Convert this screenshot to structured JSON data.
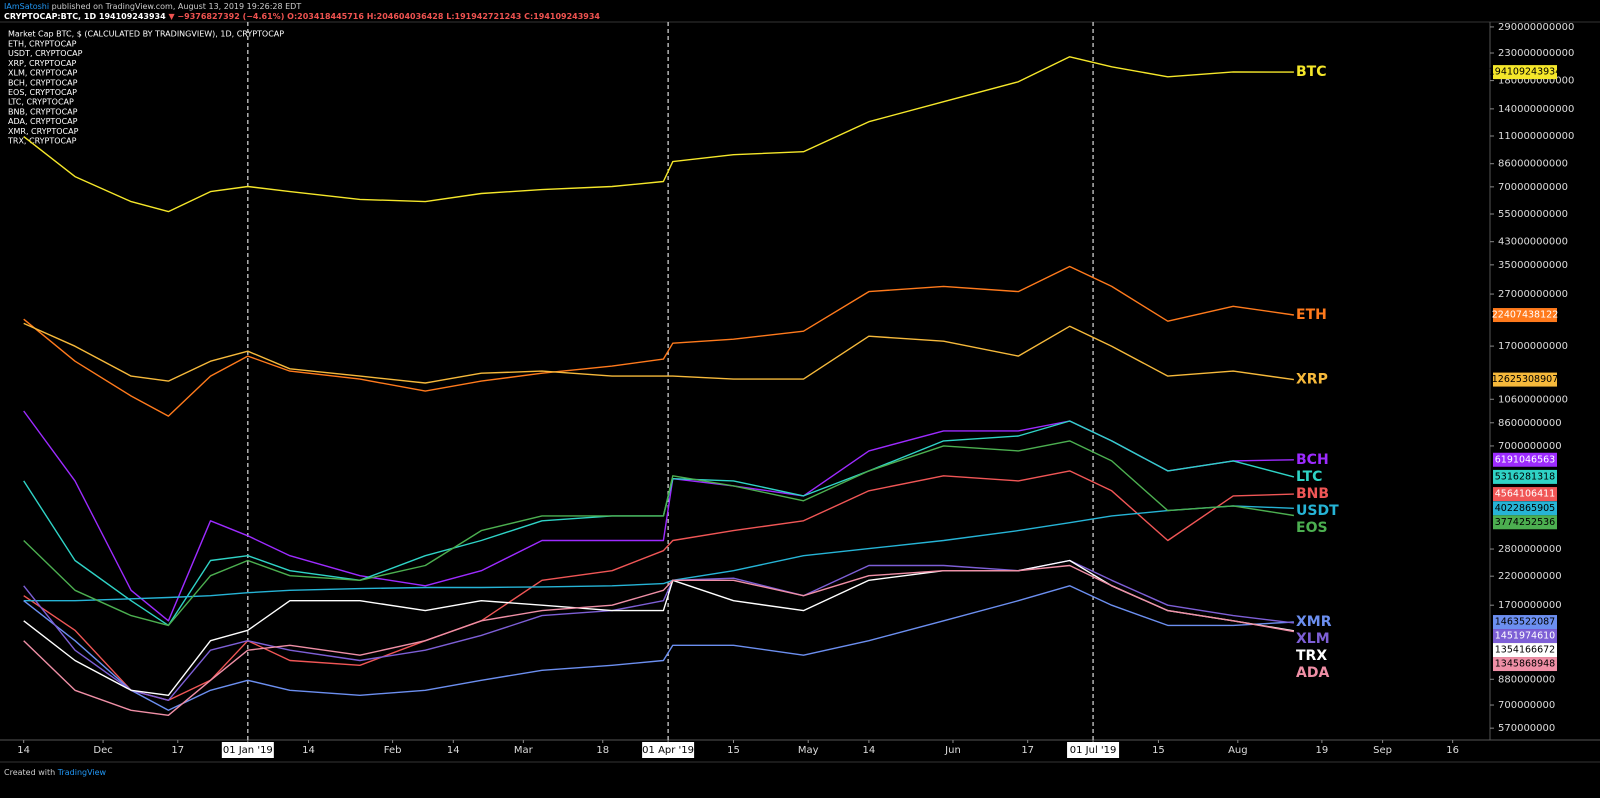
{
  "header": {
    "author": "IAmSatoshi",
    "published": "published on TradingView.com, August 13, 2019 19:26:28 EDT",
    "symbol": "CRYPTOCAP:BTC, 1D",
    "last": "194109243934",
    "change": "▼ −9376827392 (−4.61%)",
    "ohlc": [
      "O:203418445716",
      "H:204604036428",
      "L:191942721243",
      "C:194109243934"
    ]
  },
  "footer": {
    "created": "Created with",
    "brand": "TradingView"
  },
  "chart_data": {
    "type": "line",
    "title": "Market Cap BTC, $ (CALCULATED BY TRADINGVIEW), 1D, CRYPTOCAP",
    "legend_entries": [
      "ETH, CRYPTOCAP",
      "USDT, CRYPTOCAP",
      "XRP, CRYPTOCAP",
      "XLM, CRYPTOCAP",
      "BCH, CRYPTOCAP",
      "EOS, CRYPTOCAP",
      "LTC, CRYPTOCAP",
      "BNB, CRYPTOCAP",
      "ADA, CRYPTOCAP",
      "XMR, CRYPTOCAP",
      "TRX, CRYPTOCAP"
    ],
    "log_scale": true,
    "x": [
      "2018-11-14",
      "2018-11-25",
      "2018-12-07",
      "2018-12-15",
      "2018-12-24",
      "2019-01-01",
      "2019-01-10",
      "2019-01-25",
      "2019-02-08",
      "2019-02-20",
      "2019-03-05",
      "2019-03-20",
      "2019-03-31",
      "2019-04-02",
      "2019-04-15",
      "2019-04-30",
      "2019-05-14",
      "2019-05-30",
      "2019-06-15",
      "2019-06-26",
      "2019-07-05",
      "2019-07-17",
      "2019-07-31",
      "2019-08-13"
    ],
    "xlim": [
      "2018-11-10",
      "2019-09-24"
    ],
    "xticks": [
      {
        "value": "2018-11-14",
        "label": "14"
      },
      {
        "value": "2018-12-01",
        "label": "Dec"
      },
      {
        "value": "2018-12-17",
        "label": "17"
      },
      {
        "value": "2019-01-01",
        "label": "01 Jan '19"
      },
      {
        "value": "2019-01-14",
        "label": "14"
      },
      {
        "value": "2019-02-01",
        "label": "Feb"
      },
      {
        "value": "2019-02-14",
        "label": "14"
      },
      {
        "value": "2019-03-01",
        "label": "Mar"
      },
      {
        "value": "2019-03-18",
        "label": "18"
      },
      {
        "value": "2019-04-01",
        "label": "01 Apr '19"
      },
      {
        "value": "2019-04-15",
        "label": "15"
      },
      {
        "value": "2019-05-01",
        "label": "May"
      },
      {
        "value": "2019-05-14",
        "label": "14"
      },
      {
        "value": "2019-06-01",
        "label": "Jun"
      },
      {
        "value": "2019-06-17",
        "label": "17"
      },
      {
        "value": "2019-07-01",
        "label": "01 Jul '19"
      },
      {
        "value": "2019-07-15",
        "label": "15"
      },
      {
        "value": "2019-08-01",
        "label": "Aug"
      },
      {
        "value": "2019-08-19",
        "label": "19"
      },
      {
        "value": "2019-09-01",
        "label": "Sep"
      },
      {
        "value": "2019-09-16",
        "label": "16"
      }
    ],
    "vlines": [
      "2019-01-01",
      "2019-04-01",
      "2019-07-01"
    ],
    "ylim": [
      513000000,
      303000000000
    ],
    "yticks": [
      290000000000,
      230000000000,
      180000000000,
      140000000000,
      110000000000,
      86000000000,
      70000000000,
      55000000000,
      43000000000,
      35000000000,
      27000000000,
      17000000000,
      10600000000,
      8600000000,
      7000000000,
      2800000000,
      2200000000,
      1700000000,
      880000000,
      700000000,
      570000000
    ],
    "series": [
      {
        "name": "BTC",
        "color": "#f5e72a",
        "label_text": "#000000",
        "values": [
          109400000000,
          76700000000,
          61400000000,
          56200000000,
          67100000000,
          70200000000,
          67100000000,
          62600000000,
          61400000000,
          66000000000,
          68300000000,
          70200000000,
          73400000000,
          87600000000,
          93200000000,
          95700000000,
          124900000000,
          149200000000,
          178100000000,
          222300000000,
          203400000000,
          186100000000,
          194500000000,
          194109243934
        ]
      },
      {
        "name": "ETH",
        "color": "#ff7a1c",
        "label_text": "#ffffff",
        "values": [
          21600000000,
          14870000000,
          10910000000,
          9130000000,
          13020000000,
          15550000000,
          13610000000,
          12680000000,
          11400000000,
          12460000000,
          13360000000,
          14230000000,
          15140000000,
          17450000000,
          18080000000,
          19410000000,
          27600000000,
          28900000000,
          27600000000,
          34500000000,
          28900000000,
          21210000000,
          24220000000,
          22407438122
        ]
      },
      {
        "name": "XRP",
        "color": "#f6b93b",
        "label_text": "#000000",
        "values": [
          20800000000,
          16990000000,
          13020000000,
          12460000000,
          14870000000,
          16250000000,
          13900000000,
          13020000000,
          12250000000,
          13360000000,
          13610000000,
          13020000000,
          13020000000,
          13020000000,
          12680000000,
          12680000000,
          18560000000,
          17760000000,
          15550000000,
          20280000000,
          16990000000,
          13020000000,
          13610000000,
          12625308907
        ]
      },
      {
        "name": "BCH",
        "color": "#9d2bff",
        "label_text": "#ffffff",
        "values": [
          9550000000,
          5130000000,
          1940000000,
          1480000000,
          3600000000,
          3150000000,
          2640000000,
          2210000000,
          2020000000,
          2310000000,
          3020000000,
          3020000000,
          3020000000,
          5230000000,
          4910000000,
          4490000000,
          6700000000,
          8000000000,
          8000000000,
          8740000000,
          7320000000,
          5610000000,
          6130000000,
          6191046563
        ]
      },
      {
        "name": "LTC",
        "color": "#2fd3c6",
        "label_text": "#000000",
        "values": [
          5130000000,
          2530000000,
          1770000000,
          1420000000,
          2530000000,
          2640000000,
          2310000000,
          2120000000,
          2640000000,
          3020000000,
          3600000000,
          3760000000,
          3760000000,
          5230000000,
          5130000000,
          4490000000,
          5610000000,
          7320000000,
          7650000000,
          8740000000,
          7320000000,
          5610000000,
          6130000000,
          5316281318
        ]
      },
      {
        "name": "BNB",
        "color": "#f05656",
        "label_text": "#ffffff",
        "values": [
          1850000000,
          1360000000,
          798000000,
          730000000,
          872000000,
          1240000000,
          1040000000,
          996000000,
          1240000000,
          1480000000,
          2120000000,
          2310000000,
          2760000000,
          3020000000,
          3300000000,
          3600000000,
          4700000000,
          5370000000,
          5130000000,
          5610000000,
          4700000000,
          3020000000,
          4490000000,
          4564106411
        ]
      },
      {
        "name": "USDT",
        "color": "#26b4d6",
        "label_text": "#000000",
        "values": [
          1770000000,
          1770000000,
          1800000000,
          1820000000,
          1850000000,
          1900000000,
          1940000000,
          1970000000,
          1990000000,
          1990000000,
          2000000000,
          2020000000,
          2060000000,
          2120000000,
          2310000000,
          2640000000,
          2810000000,
          3020000000,
          3300000000,
          3540000000,
          3760000000,
          3940000000,
          4110000000,
          4022865905
        ]
      },
      {
        "name": "EOS",
        "color": "#4caf50",
        "label_text": "#000000",
        "values": [
          3020000000,
          1940000000,
          1550000000,
          1420000000,
          2210000000,
          2530000000,
          2210000000,
          2120000000,
          2420000000,
          3300000000,
          3760000000,
          3760000000,
          3760000000,
          5370000000,
          4910000000,
          4300000000,
          5610000000,
          7000000000,
          6700000000,
          7320000000,
          6130000000,
          3940000000,
          4110000000,
          3774252536
        ]
      },
      {
        "name": "XMR",
        "color": "#6c8ff0",
        "label_text": "#000000",
        "values": [
          1770000000,
          1240000000,
          798000000,
          668000000,
          798000000,
          872000000,
          798000000,
          763000000,
          798000000,
          872000000,
          953000000,
          996000000,
          1040000000,
          1190000000,
          1190000000,
          1090000000,
          1240000000,
          1480000000,
          1770000000,
          2020000000,
          1700000000,
          1420000000,
          1420000000,
          1463522087
        ]
      },
      {
        "name": "XLM",
        "color": "#7d5fd6",
        "label_text": "#ffffff",
        "values": [
          2020000000,
          1140000000,
          798000000,
          730000000,
          1140000000,
          1240000000,
          1140000000,
          1040000000,
          1140000000,
          1300000000,
          1550000000,
          1620000000,
          1770000000,
          2120000000,
          2160000000,
          1850000000,
          2420000000,
          2420000000,
          2310000000,
          2530000000,
          2120000000,
          1700000000,
          1550000000,
          1451974610
        ]
      },
      {
        "name": "TRX",
        "color": "#ffffff",
        "label_text": "#000000",
        "values": [
          1480000000,
          1040000000,
          798000000,
          763000000,
          1240000000,
          1360000000,
          1770000000,
          1770000000,
          1620000000,
          1770000000,
          1700000000,
          1620000000,
          1620000000,
          2120000000,
          1770000000,
          1620000000,
          2120000000,
          2310000000,
          2310000000,
          2530000000,
          2020000000,
          1620000000,
          1480000000,
          1354166672
        ]
      },
      {
        "name": "ADA",
        "color": "#ef8fa6",
        "label_text": "#000000",
        "values": [
          1240000000,
          798000000,
          668000000,
          639000000,
          872000000,
          1140000000,
          1190000000,
          1090000000,
          1240000000,
          1480000000,
          1620000000,
          1700000000,
          1940000000,
          2120000000,
          2120000000,
          1850000000,
          2210000000,
          2310000000,
          2310000000,
          2420000000,
          2020000000,
          1620000000,
          1480000000,
          1345868948
        ]
      }
    ]
  }
}
